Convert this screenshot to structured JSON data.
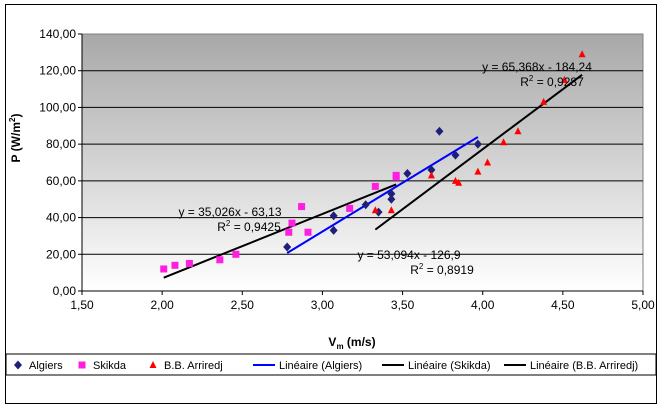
{
  "chart_data": {
    "type": "scatter",
    "xlabel": "V",
    "xlabel_sub": "m",
    "xlabel_unit": " (m/s)",
    "ylabel": "P (W/m",
    "ylabel_sup": "2",
    "ylabel_end": ")",
    "xlim": [
      1.5,
      5.0
    ],
    "ylim": [
      0,
      140
    ],
    "xticks": [
      1.5,
      2.0,
      2.5,
      3.0,
      3.5,
      4.0,
      4.5,
      5.0
    ],
    "yticks": [
      0,
      20,
      40,
      60,
      80,
      100,
      120,
      140
    ],
    "xtick_labels": [
      "1,50",
      "2,00",
      "2,50",
      "3,00",
      "3,50",
      "4,00",
      "4,50",
      "5,00"
    ],
    "ytick_labels": [
      "0,00",
      "20,00",
      "40,00",
      "60,00",
      "80,00",
      "100,00",
      "120,00",
      "140,00"
    ],
    "grid": "horizontal",
    "legend_position": "bottom",
    "series": [
      {
        "name": "Algiers",
        "marker": "diamond",
        "color": "#1F1F7A",
        "points": [
          [
            2.78,
            24
          ],
          [
            3.07,
            33
          ],
          [
            3.07,
            41
          ],
          [
            3.27,
            47
          ],
          [
            3.35,
            43
          ],
          [
            3.43,
            50
          ],
          [
            3.43,
            53
          ],
          [
            3.53,
            64
          ],
          [
            3.68,
            66
          ],
          [
            3.73,
            87
          ],
          [
            3.83,
            74
          ],
          [
            3.97,
            80
          ]
        ]
      },
      {
        "name": "Skikda",
        "marker": "square",
        "color": "#FF1FE0",
        "points": [
          [
            2.01,
            12
          ],
          [
            2.08,
            14
          ],
          [
            2.17,
            15
          ],
          [
            2.36,
            17
          ],
          [
            2.46,
            20
          ],
          [
            2.79,
            32
          ],
          [
            2.81,
            37
          ],
          [
            2.87,
            46
          ],
          [
            2.91,
            32
          ],
          [
            3.17,
            45
          ],
          [
            3.33,
            57
          ],
          [
            3.46,
            62
          ],
          [
            3.46,
            63
          ]
        ]
      },
      {
        "name": "B.B. Arriredj",
        "marker": "triangle",
        "color": "#FF0000",
        "points": [
          [
            3.33,
            44
          ],
          [
            3.43,
            44
          ],
          [
            3.68,
            63
          ],
          [
            3.83,
            60
          ],
          [
            3.85,
            59
          ],
          [
            3.97,
            65
          ],
          [
            4.03,
            70
          ],
          [
            4.13,
            81
          ],
          [
            4.22,
            87
          ],
          [
            4.38,
            103
          ],
          [
            4.51,
            115
          ],
          [
            4.62,
            129
          ]
        ]
      }
    ],
    "trendlines": [
      {
        "name": "Linéaire (Algiers)",
        "color": "#0000FF",
        "slope": 53.094,
        "intercept": -126.9,
        "x_range": [
          2.78,
          3.97
        ],
        "equation": "y = 53,094x - 126,9",
        "r2_prefix": "R",
        "r2_sup": "2",
        "r2_value": " = 0,8919"
      },
      {
        "name": "Linéaire (Skikda)",
        "color": "#000000",
        "slope": 35.026,
        "intercept": -63.13,
        "x_range": [
          2.01,
          3.46
        ],
        "equation": "y = 35,026x - 63,13",
        "r2_prefix": "R",
        "r2_sup": "2",
        "r2_value": " = 0,9425"
      },
      {
        "name": "Linéaire (B.B. Arriredj)",
        "color": "#000000",
        "slope": 65.368,
        "intercept": -184.24,
        "x_range": [
          3.33,
          4.62
        ],
        "equation": "y = 65,368x - 184,24",
        "r2_prefix": "R",
        "r2_sup": "2",
        "r2_value": " = 0,9287"
      }
    ]
  }
}
